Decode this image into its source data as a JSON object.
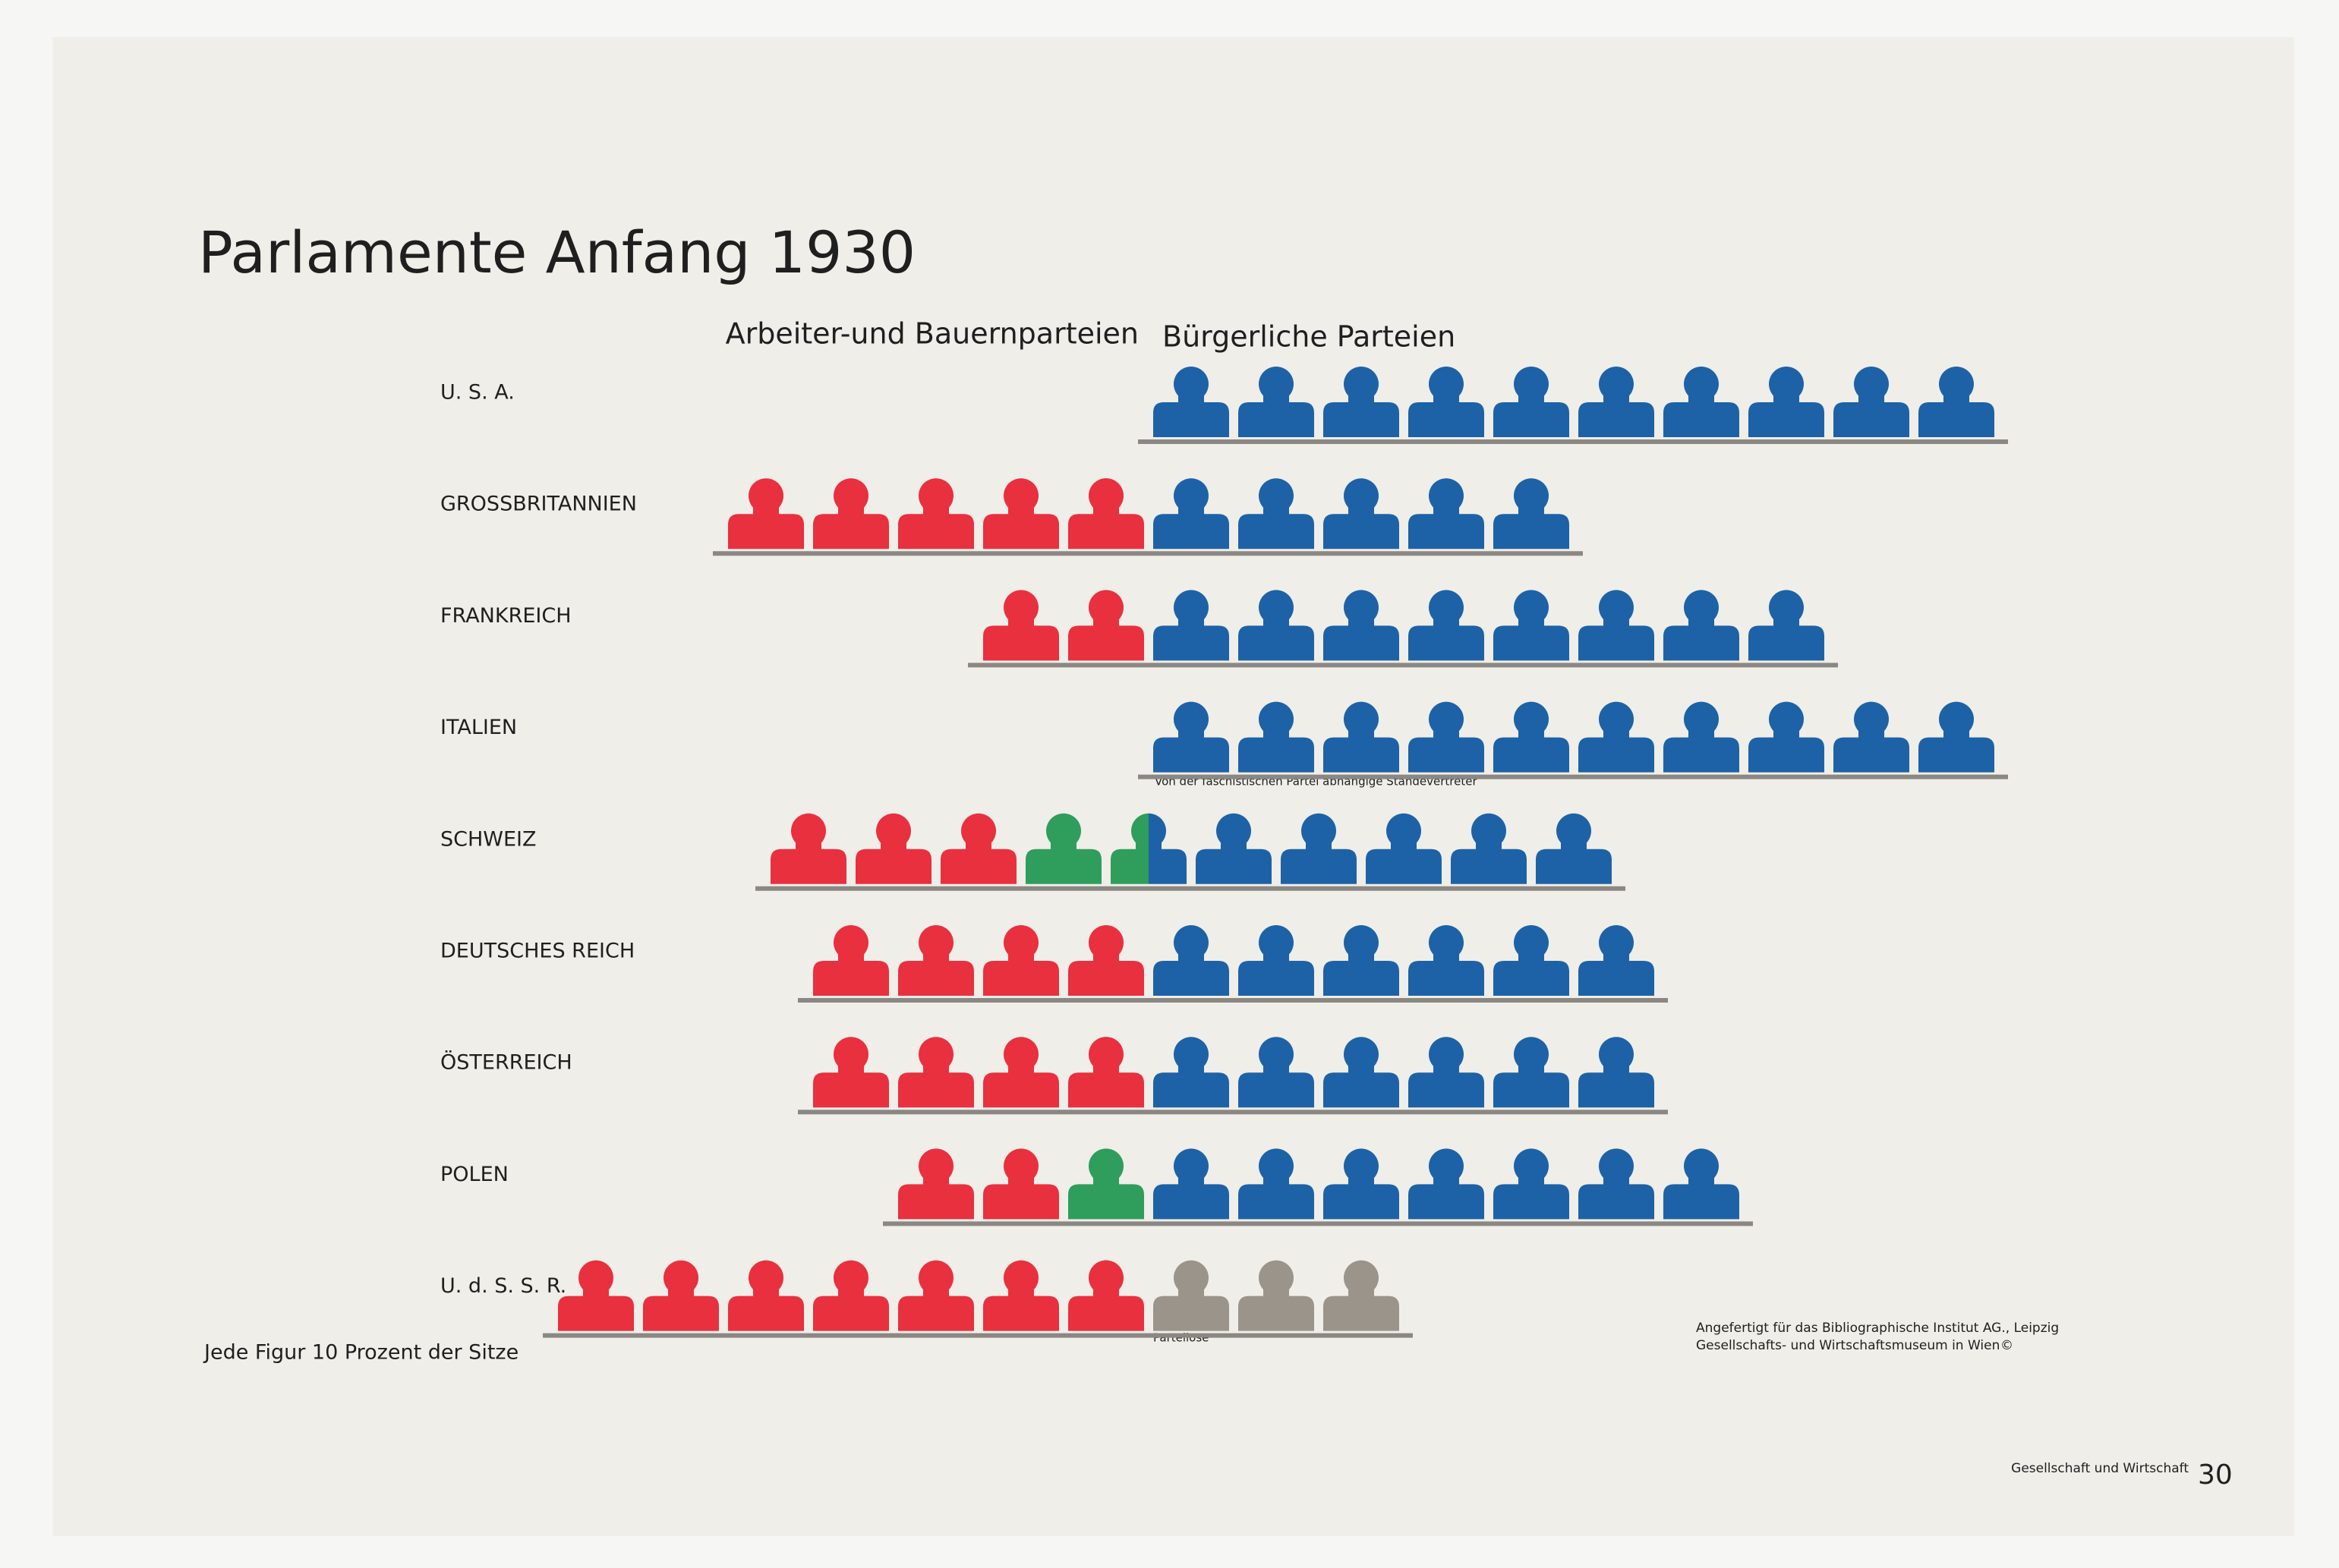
{
  "chart_data": {
    "type": "isotype",
    "title": "Parlamente Anfang 1930",
    "categories": [
      "U. S. A.",
      "GROSSBRITANNIEN",
      "FRANKREICH",
      "ITALIEN",
      "SCHWEIZ",
      "DEUTSCHES REICH",
      "ÖSTERREICH",
      "POLEN",
      "U. d. S. S. R."
    ],
    "series": [
      {
        "name": "Arbeiter-und Bauernparteien",
        "color": "#e8303f",
        "values": [
          0,
          50,
          20,
          0,
          30,
          40,
          40,
          20,
          70
        ]
      },
      {
        "color": "#2f9d5c",
        "values": [
          0,
          0,
          0,
          0,
          15,
          0,
          0,
          10,
          0
        ]
      },
      {
        "name": "Bürgerliche Parteien",
        "color": "#1d62a6",
        "values": [
          100,
          50,
          80,
          100,
          55,
          60,
          60,
          70,
          0
        ]
      },
      {
        "name": "Parteilose",
        "color": "#9a948b",
        "values": [
          0,
          0,
          0,
          0,
          0,
          0,
          0,
          0,
          30
        ]
      }
    ],
    "annotations": {
      "italy": "Von der faschistischen Partei abhängige Ständevertreter",
      "unit": "Jede Figur 10 Prozent der Sitze",
      "credit_1": "Angefertigt für das Bibliographische Institut AG., Leipzig",
      "credit_2": "Gesellschafts- und Wirtschaftsmuseum in Wien",
      "copyright": "©",
      "series_title": "Gesellschaft und Wirtschaft",
      "page": "30"
    }
  }
}
